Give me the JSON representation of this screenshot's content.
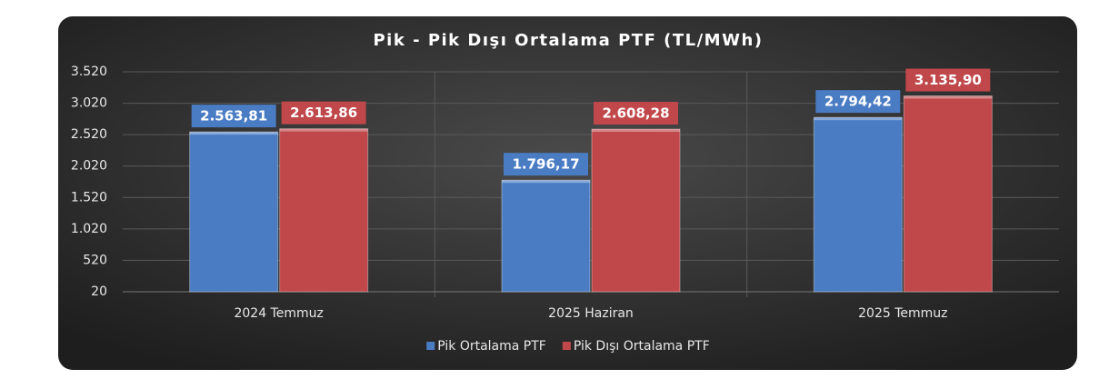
{
  "chart_data": {
    "type": "bar",
    "title": "Pik - Pik Dışı Ortalama PTF (TL/MWh)",
    "categories": [
      "2024 Temmuz",
      "2025 Haziran",
      "2025 Temmuz"
    ],
    "series": [
      {
        "name": "Pik Ortalama PTF",
        "color": "#4a7cc4",
        "values": [
          2563.81,
          1796.17,
          2794.42
        ],
        "value_labels": [
          "2.563,81",
          "1.796,17",
          "2.794,42"
        ]
      },
      {
        "name": "Pik Dışı Ortalama PTF",
        "color": "#c0474a",
        "values": [
          2613.86,
          2608.28,
          3135.9
        ],
        "value_labels": [
          "2.613,86",
          "2.608,28",
          "3.135,90"
        ]
      }
    ],
    "ylim": [
      20,
      3520
    ],
    "yticks": [
      20,
      520,
      {
        "value": 1020,
        "label": "1.020"
      },
      {
        "value": 1520,
        "label": "1.520"
      },
      {
        "value": 2020,
        "label": "2.020"
      },
      {
        "value": 2520,
        "label": "2.520"
      },
      {
        "value": 3020,
        "label": "3.020"
      },
      {
        "value": 3520,
        "label": "3.520"
      }
    ],
    "grid": true,
    "legend": "bottom"
  }
}
